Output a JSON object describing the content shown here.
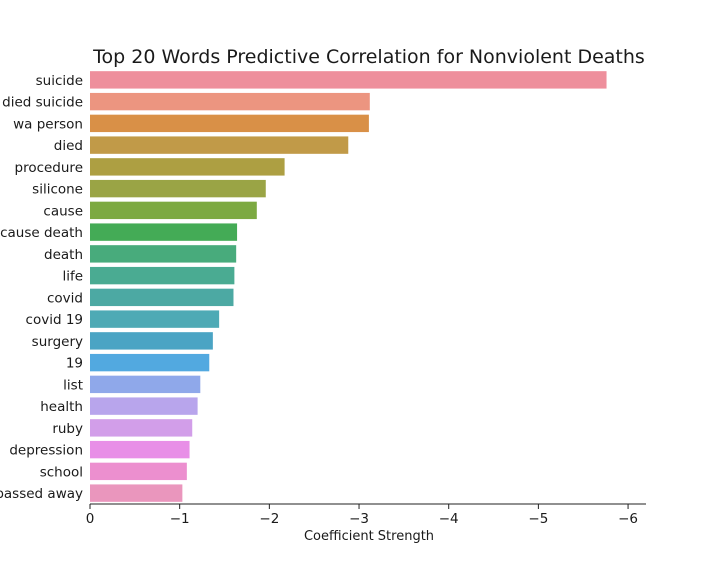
{
  "chart_data": {
    "type": "bar",
    "orientation": "horizontal",
    "title": "Top 20 Words Predictive Correlation for Nonviolent Deaths",
    "xlabel": "Coefficient Strength",
    "ylabel": "",
    "xlim": [
      0,
      -6.2
    ],
    "x_ticks": [
      0,
      -1,
      -2,
      -3,
      -4,
      -5,
      -6
    ],
    "x_tick_labels": [
      "0",
      "−1",
      "−2",
      "−3",
      "−4",
      "−5",
      "−6"
    ],
    "grid": false,
    "categories": [
      "suicide",
      "died suicide",
      "wa person",
      "died",
      "procedure",
      "silicone",
      "cause",
      "cause death",
      "death",
      "life",
      "covid",
      "covid 19",
      "surgery",
      "19",
      "list",
      "health",
      "ruby",
      "depression",
      "school",
      "passed away"
    ],
    "values": [
      -5.76,
      -3.12,
      -3.11,
      -2.88,
      -2.17,
      -1.96,
      -1.86,
      -1.64,
      -1.63,
      -1.61,
      -1.6,
      -1.44,
      -1.37,
      -1.33,
      -1.23,
      -1.2,
      -1.14,
      -1.11,
      -1.08,
      -1.03
    ],
    "colors": [
      "#ee8f9c",
      "#ec9580",
      "#d99047",
      "#c19a48",
      "#ad9f42",
      "#9aa445",
      "#7ca941",
      "#44ab56",
      "#48ab7c",
      "#4aab92",
      "#4ca9a3",
      "#4eaab5",
      "#4aa4c4",
      "#52a9e0",
      "#8fa8ea",
      "#b8a5ec",
      "#d29ee9",
      "#e88fe7",
      "#ec8fcf",
      "#ea96bd"
    ]
  }
}
